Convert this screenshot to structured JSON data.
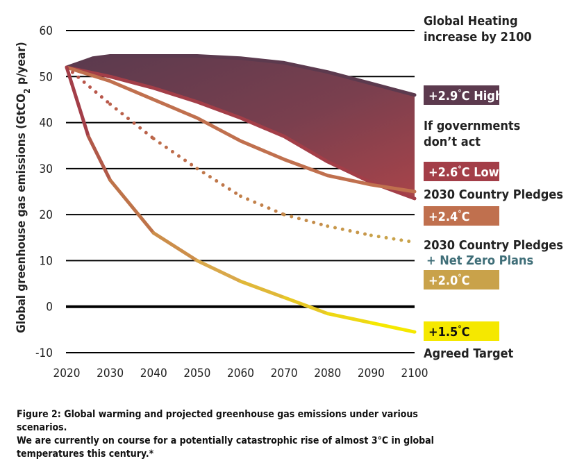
{
  "chart_data": {
    "type": "line",
    "ylabel": "Global greenhouse gas emissions (GtCO",
    "ylabel_sub": "2",
    "ylabel_tail": " p/year)",
    "ylim": [
      -10,
      60
    ],
    "xlim": [
      2020,
      2100
    ],
    "y_ticks": [
      60,
      50,
      40,
      30,
      20,
      10,
      0,
      -10
    ],
    "y_tick_labels": [
      "60",
      "50",
      "40",
      "30",
      "20",
      "10",
      "0",
      "-10"
    ],
    "x_ticks": [
      2020,
      2030,
      2040,
      2050,
      2060,
      2070,
      2080,
      2090,
      2100
    ],
    "x_tick_labels": [
      "2020",
      "2030",
      "2040",
      "2050",
      "2060",
      "2070",
      "2080",
      "2090",
      "2100"
    ],
    "grid": true,
    "series": [
      {
        "key": "high",
        "color": "#5c3a4e",
        "x": [
          2020,
          2026,
          2030,
          2040,
          2050,
          2060,
          2070,
          2080,
          2090,
          2100
        ],
        "y": [
          52,
          54,
          54.5,
          54.5,
          54.5,
          54,
          53,
          51,
          48.5,
          46
        ]
      },
      {
        "key": "low",
        "color": "#a33e48",
        "x": [
          2020,
          2030,
          2040,
          2050,
          2060,
          2070,
          2080,
          2090,
          2100
        ],
        "y": [
          52,
          50,
          47.5,
          44.5,
          41,
          37,
          31.5,
          27,
          23.5
        ]
      },
      {
        "key": "pledges",
        "color": "#c0704e",
        "x": [
          2020,
          2030,
          2040,
          2050,
          2060,
          2070,
          2080,
          2090,
          2100
        ],
        "y": [
          52,
          49,
          45,
          41,
          36,
          32,
          28.5,
          26.5,
          25
        ]
      },
      {
        "key": "netzero",
        "color_start": "#b8564a",
        "color_end": "#c9a24a",
        "dotted": true,
        "x": [
          2020,
          2030,
          2040,
          2050,
          2060,
          2070,
          2080,
          2090,
          2100
        ],
        "y": [
          52,
          44,
          36.5,
          30,
          24,
          20,
          17.5,
          15.5,
          14
        ]
      },
      {
        "key": "target",
        "color_start": "#a33e48",
        "color_mid": "#d9a84a",
        "color_end": "#f5e800",
        "x": [
          2020,
          2025,
          2030,
          2040,
          2050,
          2060,
          2070,
          2080,
          2090,
          2100
        ],
        "y": [
          52,
          37,
          27.5,
          16,
          10,
          5.5,
          2,
          -1.5,
          -3.5,
          -5.5
        ]
      }
    ],
    "annotations": [
      {
        "key": "heating1",
        "text": "Global Heating"
      },
      {
        "key": "heating2",
        "text": "increase by 2100"
      },
      {
        "key": "act1",
        "text": "If governments"
      },
      {
        "key": "act2",
        "text": "don’t act"
      },
      {
        "key": "pledge",
        "text": "2030 Country Pledges"
      },
      {
        "key": "nz1",
        "text": "2030 Country Pledges"
      },
      {
        "key": "nz2",
        "text": "+ Net Zero Plans"
      },
      {
        "key": "target",
        "text": "Agreed Target"
      }
    ],
    "badges": [
      {
        "key": "high",
        "pre": "+2.9",
        "deg": "°",
        "post": "C High",
        "bg": "#5c3a4e",
        "fg": "#ffffff"
      },
      {
        "key": "low",
        "pre": "+2.6",
        "deg": "°",
        "post": "C Low",
        "bg": "#a33e48",
        "fg": "#ffffff"
      },
      {
        "key": "pledges",
        "pre": "+2.4",
        "deg": "°",
        "post": "C",
        "bg": "#c0704e",
        "fg": "#ffffff"
      },
      {
        "key": "netzero",
        "pre": "+2.0",
        "deg": "°",
        "post": "C",
        "bg": "#c9a24a",
        "fg": "#ffffff"
      },
      {
        "key": "target",
        "pre": "+1.5",
        "deg": "°",
        "post": "C",
        "bg": "#f5e800",
        "fg": "#111111"
      }
    ]
  },
  "caption": {
    "line1": "Figure 2: Global warming and projected greenhouse gas emissions under various scenarios.",
    "line2": "We are currently on course for a potentially catastrophic rise of almost 3°C in global",
    "line3": "temperatures this century.*"
  }
}
